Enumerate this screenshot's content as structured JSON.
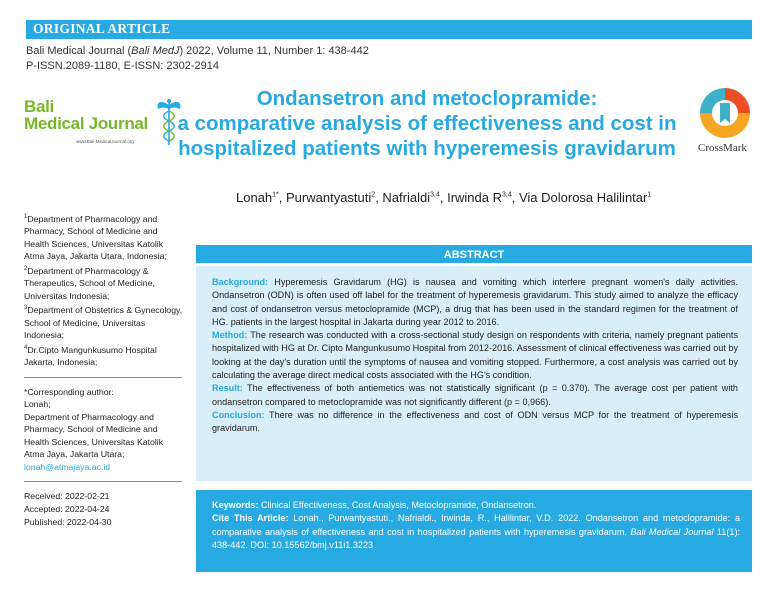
{
  "banner": {
    "label": "ORIGINAL ARTICLE"
  },
  "journal": {
    "line1_pre": "Bali Medical Journal (",
    "line1_italic": "Bali MedJ",
    "line1_post": ") 2022, Volume 11, Number 1: 438-442",
    "line2": "P-ISSN.2089-1180, E-ISSN: 2302-2914"
  },
  "logo": {
    "word1": "Bali",
    "word2": "Medical Journal",
    "url": "www.Bali-MedicalJournal.org"
  },
  "title": {
    "line1": "Ondansetron and metoclopramide:",
    "line2": "a comparative analysis of effectiveness and cost in",
    "line3": "hospitalized patients with hyperemesis gravidarum"
  },
  "crossmark": {
    "label": "CrossMark"
  },
  "authors": [
    {
      "name": "Lonah",
      "sup": "1*",
      "sep": ", "
    },
    {
      "name": "Purwantyastuti",
      "sup": "2",
      "sep": ", "
    },
    {
      "name": "Nafrialdi",
      "sup": "3,4",
      "sep": ", "
    },
    {
      "name": "Irwinda R",
      "sup": "3,4",
      "sep": ", "
    },
    {
      "name": "Via Dolorosa Halilintar",
      "sup": "1",
      "sep": ""
    }
  ],
  "affiliations": [
    {
      "sup": "1",
      "text": "Department of Pharmacology and Pharmacy, School of Medicine and Health Sciences, Universitas Katolik Atma Jaya, Jakarta Utara, Indonesia;"
    },
    {
      "sup": "2",
      "text": "Department of Pharmacology & Therapeutics, School of Medicine, Universitas Indonesia;"
    },
    {
      "sup": "3",
      "text": "Department of Obstetrics & Gynecology, School of Medicine, Universitas Indonesia;"
    },
    {
      "sup": "4",
      "text": "Dr.Cipto Mangunkusumo Hospital Jakarta, Indonesia;"
    }
  ],
  "corresponding": {
    "label": "*Corresponding author:",
    "name": "Lonah;",
    "address": "Department of Pharmacology and Pharmacy, School of Medicine and Health Sciences, Universitas Katolik Atma Jaya, Jakarta Utara;",
    "email": "lonah@atmajaya.ac.id"
  },
  "dates": {
    "received": "Received: 2022-02-21",
    "accepted": "Accepted: 2022-04-24",
    "published": "Published: 2022-04-30"
  },
  "abstract": {
    "heading": "ABSTRACT",
    "sections": [
      {
        "label": "Background:",
        "text": "Hyperemesis Gravidarum (HG) is nausea and vomiting which interfere pregnant women's daily activities. Ondansetron (ODN) is often used off label for the treatment of hyperemesis gravidarum. This study aimed to analyze the efficacy and cost of ondansetron versus metoclopramide (MCP), a drug that has been used in the standard regimen for the treatment of HG. patients in the largest hospital in Jakarta during year 2012 to 2016."
      },
      {
        "label": "Method:",
        "text": "The research was conducted with a cross-sectional study design on respondents with criteria, namely pregnant patients hospitalized with HG at Dr. Cipto Mangunkusumo Hospital from 2012-2016. Assessment of clinical effectiveness was carried out by looking at the day's duration until the symptoms of nausea and vomiting stopped. Furthermore, a cost analysis was carried out by calculating the average direct medical costs associated with the HG's condition."
      },
      {
        "label": "Result:",
        "text": "The effectiveness of both antiemetics was not statistically significant (p = 0.370). The average cost per patient with ondansetron compared to metoclopramide was not significantly different (p = 0,966)."
      },
      {
        "label": "Conclusion:",
        "text": "There was no difference in the effectiveness and cost of ODN versus MCP for the treatment of hyperemesis gravidarum."
      }
    ]
  },
  "keywords": {
    "label": "Keywords:",
    "text": "Clinical Effectiveness, Cost Analysis, Metoclopramide, Ondansetron."
  },
  "cite": {
    "label": "Cite This Article:",
    "text": "Lonah., Purwantyastuti., Nafrialdi., Irwinda, R., Halilintar, V.D. 2022. Ondansetron and metoclopramide: a comparative analysis of effectiveness and cost in hospitalized patients with hyperemesis gravidarum.",
    "journal": "Bali Medical Journal",
    "tail": "11(1): 438-442. DOI: 10.15562/bmj.v11i1.3223"
  },
  "colors": {
    "accent": "#27a9e1",
    "logo_green": "#78b72a",
    "abstract_bg": "#d8eef9"
  },
  "icons": {
    "logo_emblem": "caduceus-icon",
    "crossmark": "crossmark-icon"
  }
}
